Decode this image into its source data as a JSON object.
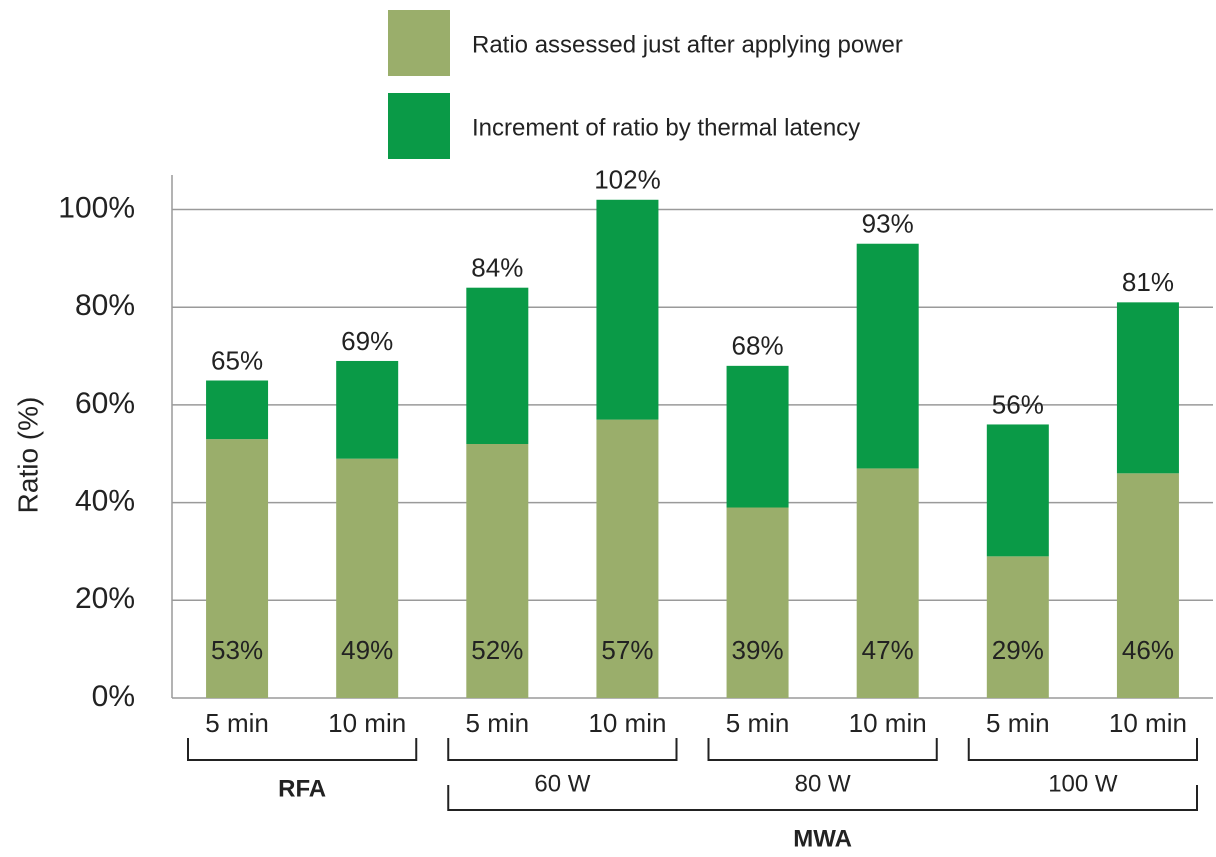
{
  "chart_data": {
    "type": "stacked_bar",
    "ylabel": "Ratio (%)",
    "categories": [
      "5 min",
      "10 min",
      "5 min",
      "10 min",
      "5 min",
      "10 min",
      "5 min",
      "10 min"
    ],
    "series": [
      {
        "name": "Ratio assessed just after applying power",
        "color": "#9aae6b",
        "values": [
          53,
          49,
          52,
          57,
          39,
          47,
          29,
          46
        ],
        "value_labels": [
          "53%",
          "49%",
          "52%",
          "57%",
          "39%",
          "47%",
          "29%",
          "46%"
        ]
      },
      {
        "name": "Increment of ratio by thermal latency",
        "color": "#0a9a47",
        "values": [
          12,
          20,
          32,
          45,
          29,
          46,
          27,
          35
        ]
      }
    ],
    "totals": [
      65,
      69,
      84,
      102,
      68,
      93,
      56,
      81
    ],
    "total_labels": [
      "65%",
      "69%",
      "84%",
      "102%",
      "68%",
      "93%",
      "56%",
      "81%"
    ],
    "groups": [
      "RFA",
      "60 W",
      "80 W",
      "100 W"
    ],
    "supergroup": "MWA",
    "ylim": [
      0,
      104
    ],
    "yticks": [
      {
        "value": 0,
        "label": "0%"
      },
      {
        "value": 20,
        "label": "20%"
      },
      {
        "value": 40,
        "label": "40%"
      },
      {
        "value": 60,
        "label": "60%"
      },
      {
        "value": 80,
        "label": "80%"
      },
      {
        "value": 100,
        "label": "100%"
      }
    ],
    "grid": true
  }
}
